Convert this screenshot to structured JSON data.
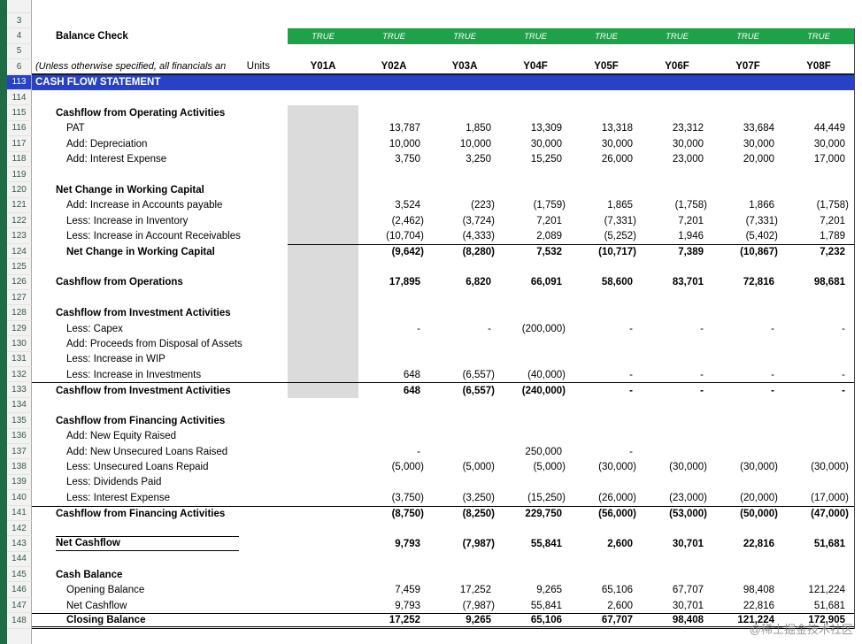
{
  "watermark": "@稀土掘金技术社区",
  "colors": {
    "true_green": "#1FA04A",
    "title_blue": "#2841C6",
    "shaded_column": "#DBDBDB",
    "left_strip": "#1E6C46",
    "row_header_bg": "#F2F2F2"
  },
  "sheet": {
    "rows": [
      {
        "num": "3",
        "type": "blank"
      },
      {
        "num": "4",
        "type": "check",
        "label": "Balance Check",
        "check_values": [
          "TRUE",
          "TRUE",
          "TRUE",
          "TRUE",
          "TRUE",
          "TRUE",
          "TRUE",
          "TRUE"
        ]
      },
      {
        "num": "5",
        "type": "blank"
      },
      {
        "num": "6",
        "type": "headers",
        "note": "(Unless otherwise specified, all financials an",
        "units_label": "Units",
        "headers": [
          "Y01A",
          "Y02A",
          "Y03A",
          "Y04F",
          "Y05F",
          "Y06F",
          "Y07F",
          "Y08F"
        ]
      },
      {
        "num": "113",
        "type": "titlebar",
        "label": "CASH FLOW STATEMENT"
      },
      {
        "num": "114",
        "type": "blank"
      },
      {
        "num": "115",
        "label": "Cashflow from Operating Activities",
        "bold": true,
        "indent": 1,
        "gray": true
      },
      {
        "num": "116",
        "label": "PAT",
        "indent": 2,
        "gray": true,
        "values": [
          "",
          "13,787",
          "1,850",
          "13,309",
          "13,318",
          "23,312",
          "33,684",
          "44,449"
        ]
      },
      {
        "num": "117",
        "label": "Add: Depreciation",
        "indent": 2,
        "gray": true,
        "values": [
          "",
          "10,000",
          "10,000",
          "30,000",
          "30,000",
          "30,000",
          "30,000",
          "30,000"
        ]
      },
      {
        "num": "118",
        "label": "Add: Interest Expense",
        "indent": 2,
        "gray": true,
        "values": [
          "",
          "3,750",
          "3,250",
          "15,250",
          "26,000",
          "23,000",
          "20,000",
          "17,000"
        ]
      },
      {
        "num": "119",
        "type": "blank",
        "gray": true
      },
      {
        "num": "120",
        "label": "Net Change in Working Capital",
        "bold": true,
        "indent": 1,
        "gray": true
      },
      {
        "num": "121",
        "label": "Add: Increase in Accounts payable",
        "indent": 2,
        "gray": true,
        "values": [
          "",
          "3,524",
          "(223)",
          "(1,759)",
          "1,865",
          "(1,758)",
          "1,866",
          "(1,758)"
        ]
      },
      {
        "num": "122",
        "label": "Less: Increase in Inventory",
        "indent": 2,
        "gray": true,
        "values": [
          "",
          "(2,462)",
          "(3,724)",
          "7,201",
          "(7,331)",
          "7,201",
          "(7,331)",
          "7,201"
        ]
      },
      {
        "num": "123",
        "label": "Less: Increase in Account Receivables",
        "indent": 2,
        "gray": true,
        "values": [
          "",
          "(10,704)",
          "(4,333)",
          "2,089",
          "(5,252)",
          "1,946",
          "(5,402)",
          "1,789"
        ]
      },
      {
        "num": "124",
        "label": "Net Change in Working Capital",
        "bold": true,
        "indent": 2,
        "gray": true,
        "bold_values": true,
        "border_top_cells": true,
        "values": [
          "",
          "(9,642)",
          "(8,280)",
          "7,532",
          "(10,717)",
          "7,389",
          "(10,867)",
          "7,232"
        ]
      },
      {
        "num": "125",
        "type": "blank",
        "gray": true
      },
      {
        "num": "126",
        "label": "Cashflow from Operations",
        "bold": true,
        "indent": 1,
        "gray": true,
        "bold_values": true,
        "values": [
          "",
          "17,895",
          "6,820",
          "66,091",
          "58,600",
          "83,701",
          "72,816",
          "98,681"
        ]
      },
      {
        "num": "127",
        "type": "blank",
        "gray": true
      },
      {
        "num": "128",
        "label": "Cashflow from Investment Activities",
        "bold": true,
        "indent": 1,
        "gray": true
      },
      {
        "num": "129",
        "label": "Less: Capex",
        "indent": 2,
        "gray": true,
        "values": [
          "",
          "-",
          "-",
          "(200,000)",
          "-",
          "-",
          "-",
          "-"
        ]
      },
      {
        "num": "130",
        "label": "Add: Proceeds from Disposal of Assets",
        "indent": 2,
        "gray": true
      },
      {
        "num": "131",
        "label": "Less: Increase in WIP",
        "indent": 2,
        "gray": true
      },
      {
        "num": "132",
        "label": "Less: Increase in Investments",
        "indent": 2,
        "gray": true,
        "values": [
          "",
          "648",
          "(6,557)",
          "(40,000)",
          "-",
          "-",
          "-",
          "-"
        ]
      },
      {
        "num": "133",
        "label": "Cashflow from Investment Activities",
        "bold": true,
        "indent": 1,
        "gray": true,
        "bold_values": true,
        "border_top": true,
        "values": [
          "",
          "648",
          "(6,557)",
          "(240,000)",
          "-",
          "-",
          "-",
          "-"
        ]
      },
      {
        "num": "134",
        "type": "blank"
      },
      {
        "num": "135",
        "label": "Cashflow from Financing Activities",
        "bold": true,
        "indent": 1
      },
      {
        "num": "136",
        "label": "Add: New Equity Raised",
        "indent": 2
      },
      {
        "num": "137",
        "label": "Add: New Unsecured Loans Raised",
        "indent": 2,
        "values": [
          "",
          "-",
          "",
          "250,000",
          "-",
          "",
          "",
          ""
        ]
      },
      {
        "num": "138",
        "label": "Less: Unsecured Loans Repaid",
        "indent": 2,
        "values": [
          "",
          "(5,000)",
          "(5,000)",
          "(5,000)",
          "(30,000)",
          "(30,000)",
          "(30,000)",
          "(30,000)"
        ]
      },
      {
        "num": "139",
        "label": "Less: Dividends Paid",
        "indent": 2
      },
      {
        "num": "140",
        "label": "Less: Interest Expense",
        "indent": 2,
        "values": [
          "",
          "(3,750)",
          "(3,250)",
          "(15,250)",
          "(26,000)",
          "(23,000)",
          "(20,000)",
          "(17,000)"
        ]
      },
      {
        "num": "141",
        "label": "Cashflow from Financing Activities",
        "bold": true,
        "indent": 1,
        "bold_values": true,
        "border_top": true,
        "values": [
          "",
          "(8,750)",
          "(8,250)",
          "229,750",
          "(56,000)",
          "(53,000)",
          "(50,000)",
          "(47,000)"
        ]
      },
      {
        "num": "142",
        "type": "blank"
      },
      {
        "num": "143",
        "label": "Net Cashflow",
        "bold": true,
        "indent": 1,
        "label_boxed": true,
        "bold_values": true,
        "values": [
          "",
          "9,793",
          "(7,987)",
          "55,841",
          "2,600",
          "30,701",
          "22,816",
          "51,681"
        ]
      },
      {
        "num": "144",
        "type": "blank"
      },
      {
        "num": "145",
        "label": "Cash Balance",
        "bold": true,
        "indent": 1
      },
      {
        "num": "146",
        "label": "Opening Balance",
        "indent": 2,
        "values": [
          "",
          "7,459",
          "17,252",
          "9,265",
          "65,106",
          "67,707",
          "98,408",
          "121,224"
        ]
      },
      {
        "num": "147",
        "label": "Net Cashflow",
        "indent": 2,
        "values": [
          "",
          "9,793",
          "(7,987)",
          "55,841",
          "2,600",
          "30,701",
          "22,816",
          "51,681"
        ]
      },
      {
        "num": "148",
        "label": "Closing Balance",
        "bold": true,
        "indent": 2,
        "bold_values": true,
        "border_top": true,
        "double_bottom": true,
        "values": [
          "",
          "17,252",
          "9,265",
          "65,106",
          "67,707",
          "98,408",
          "121,224",
          "172,905"
        ]
      }
    ]
  }
}
